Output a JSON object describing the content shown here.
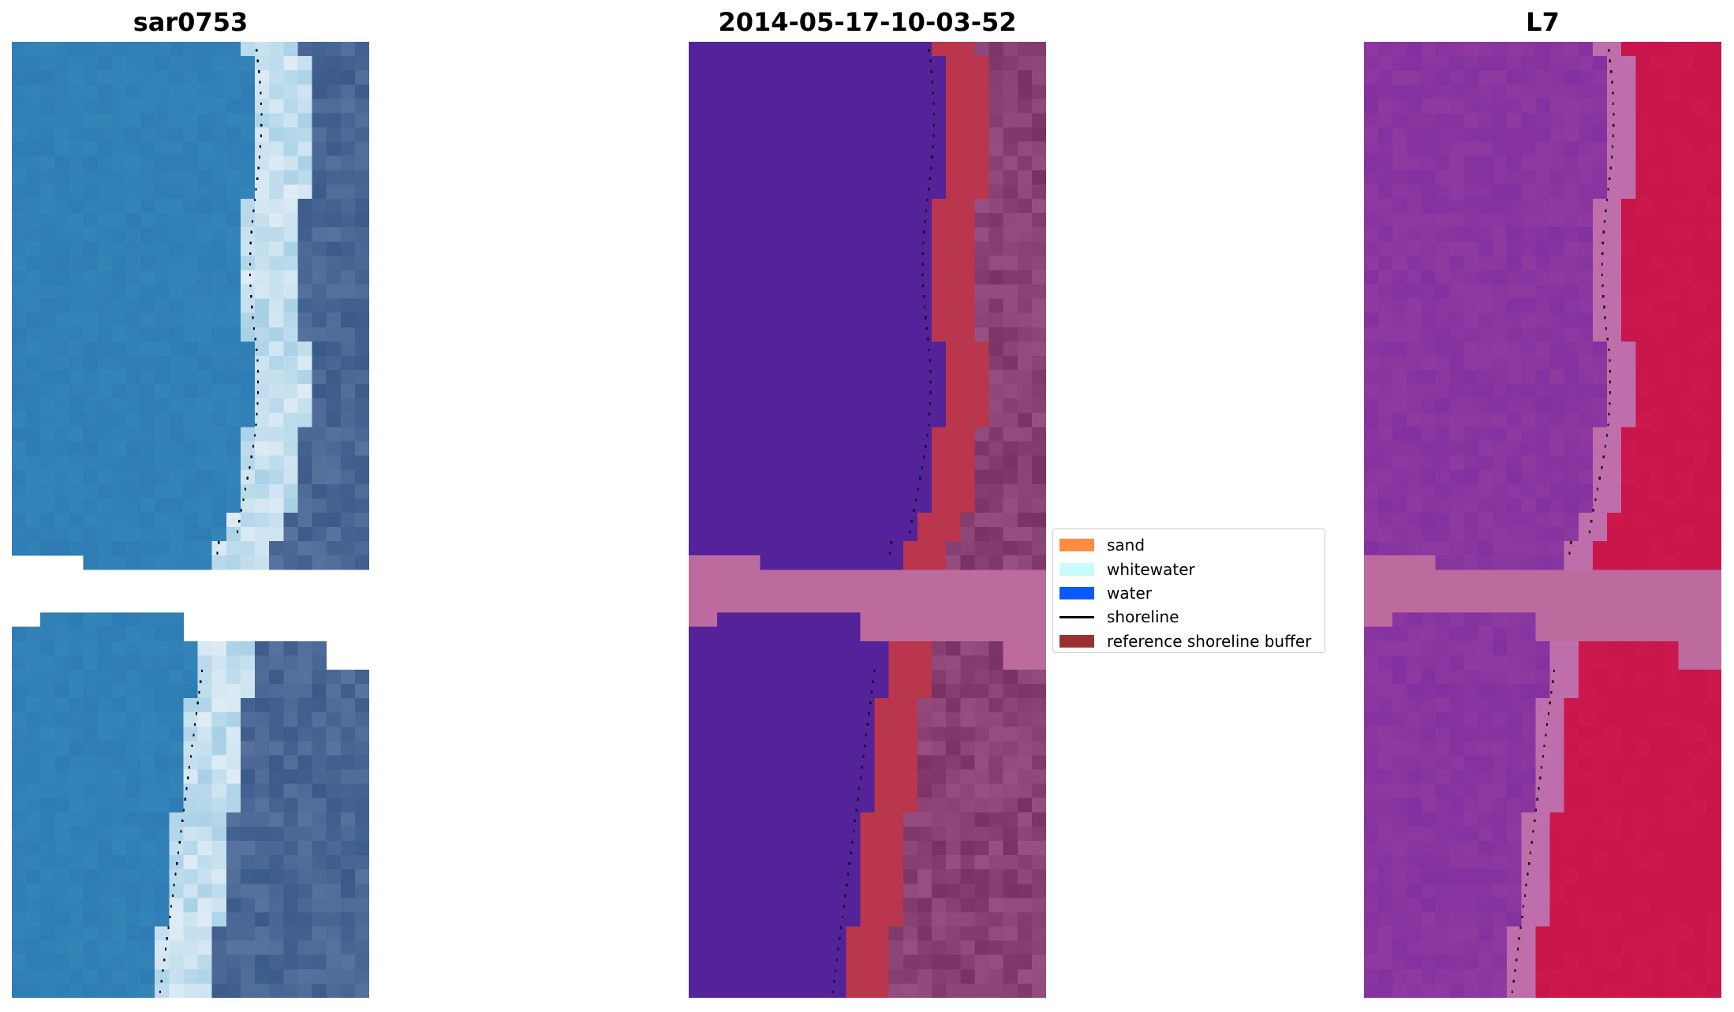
{
  "panels": [
    {
      "id": "rgb",
      "title": "sar0753",
      "colormap": "rgb"
    },
    {
      "id": "classified",
      "title": "2014-05-17-10-03-52",
      "colormap": "classified"
    },
    {
      "id": "index",
      "title": "L7",
      "colormap": "index"
    }
  ],
  "legend": {
    "items": [
      {
        "label": "sand",
        "type": "patch",
        "color": "#ff8c3f"
      },
      {
        "label": "whitewater",
        "type": "patch",
        "color": "#c8fcfc"
      },
      {
        "label": "water",
        "type": "patch",
        "color": "#0a5aff"
      },
      {
        "label": "shoreline",
        "type": "line",
        "color": "#000000"
      },
      {
        "label": "reference shoreline buffer",
        "type": "patch",
        "color": "#9b3030"
      }
    ]
  },
  "colors": {
    "water_class": "#54239a",
    "buffer_red": "#b9364c",
    "nodata_pink": "#bd6a9e",
    "ocean_rgb": "#2f7cb5",
    "land_rgb": "#3a5a8a",
    "index_water": "#8e3aa0",
    "index_land": "#c8154a"
  }
}
